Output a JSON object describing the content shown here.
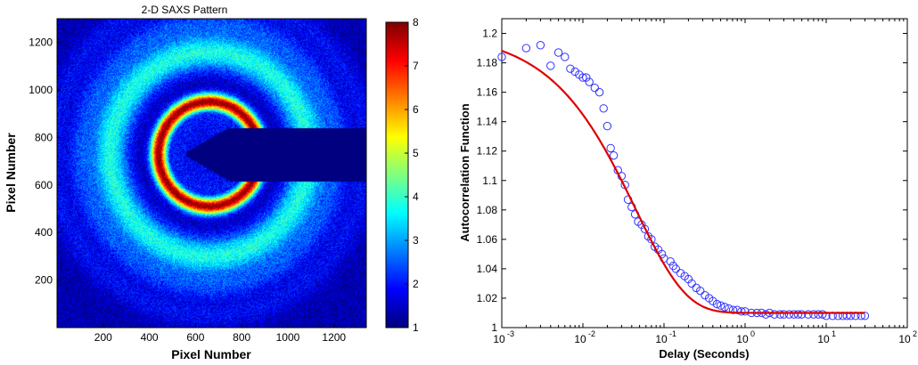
{
  "chart_data": [
    {
      "type": "heatmap",
      "title": "2-D SAXS Pattern",
      "xlabel": "Pixel Number",
      "ylabel": "Pixel Number",
      "xlim": [
        0,
        1340
      ],
      "ylim": [
        0,
        1300
      ],
      "x_ticks": [
        200,
        400,
        600,
        800,
        1000,
        1200
      ],
      "y_ticks": [
        200,
        400,
        600,
        800,
        1000,
        1200
      ],
      "colorbar": {
        "min": 1,
        "max": 8,
        "ticks": [
          1,
          2,
          3,
          4,
          5,
          6,
          7,
          8
        ],
        "colormap": "jet"
      },
      "pattern_center": [
        660,
        730
      ],
      "rings": [
        {
          "radius": 220,
          "value": 7.8
        },
        {
          "radius": 430,
          "value": 3.8
        },
        {
          "radius": 560,
          "value": 2.9
        },
        {
          "radius": 680,
          "value": 2.1
        }
      ],
      "background_value": 1.3,
      "beamstop": {
        "value": 1.0,
        "tip": [
          560,
          730
        ],
        "x_end": 1340,
        "y_range": [
          615,
          840
        ]
      },
      "grid": false
    },
    {
      "type": "scatter",
      "xlabel": "Delay (Seconds)",
      "ylabel": "Autocorrelation Function",
      "xscale": "log",
      "xlim": [
        0.001,
        100
      ],
      "ylim": [
        1.0,
        1.21
      ],
      "x_ticks": [
        0.001,
        0.01,
        0.1,
        1,
        10,
        100
      ],
      "x_tick_labels": [
        {
          "base": "10",
          "exp": "-3"
        },
        {
          "base": "10",
          "exp": "-2"
        },
        {
          "base": "10",
          "exp": "-1"
        },
        {
          "base": "10",
          "exp": "0"
        },
        {
          "base": "10",
          "exp": "1"
        },
        {
          "base": "10",
          "exp": "2"
        }
      ],
      "y_ticks": [
        "1",
        "1.02",
        "1.04",
        "1.06",
        "1.08",
        "1.1",
        "1.12",
        "1.14",
        "1.16",
        "1.18",
        "1.2"
      ],
      "grid": false,
      "series": [
        {
          "type": "scatter",
          "marker": "circle-open",
          "color": "#3333ff",
          "x": [
            0.001,
            0.002,
            0.003,
            0.004,
            0.005,
            0.006,
            0.007,
            0.008,
            0.009,
            0.01,
            0.011,
            0.012,
            0.014,
            0.016,
            0.018,
            0.02,
            0.022,
            0.024,
            0.027,
            0.03,
            0.033,
            0.036,
            0.04,
            0.044,
            0.048,
            0.053,
            0.058,
            0.064,
            0.07,
            0.077,
            0.085,
            0.094,
            0.1,
            0.12,
            0.13,
            0.14,
            0.16,
            0.18,
            0.2,
            0.22,
            0.25,
            0.28,
            0.32,
            0.36,
            0.4,
            0.45,
            0.5,
            0.56,
            0.63,
            0.71,
            0.8,
            0.9,
            1.0,
            1.2,
            1.4,
            1.6,
            1.8,
            2.0,
            2.3,
            2.7,
            3.0,
            3.5,
            4.0,
            4.5,
            5.0,
            6.0,
            7.0,
            8.0,
            9.0,
            10,
            12,
            14,
            16,
            18,
            20,
            23,
            27,
            30
          ],
          "y": [
            1.184,
            1.19,
            1.192,
            1.178,
            1.187,
            1.184,
            1.176,
            1.174,
            1.172,
            1.17,
            1.17,
            1.167,
            1.163,
            1.16,
            1.149,
            1.137,
            1.122,
            1.117,
            1.107,
            1.103,
            1.097,
            1.087,
            1.082,
            1.077,
            1.072,
            1.07,
            1.067,
            1.062,
            1.06,
            1.055,
            1.053,
            1.05,
            1.047,
            1.045,
            1.042,
            1.04,
            1.037,
            1.035,
            1.033,
            1.03,
            1.027,
            1.025,
            1.022,
            1.02,
            1.018,
            1.016,
            1.015,
            1.014,
            1.013,
            1.012,
            1.012,
            1.011,
            1.011,
            1.01,
            1.01,
            1.01,
            1.009,
            1.01,
            1.009,
            1.009,
            1.009,
            1.009,
            1.009,
            1.009,
            1.009,
            1.009,
            1.009,
            1.009,
            1.009,
            1.008,
            1.008,
            1.008,
            1.008,
            1.008,
            1.008,
            1.008,
            1.008,
            1.008
          ]
        },
        {
          "type": "line",
          "color": "#dd0000",
          "model": {
            "baseline": 1.01,
            "amplitude": 0.191,
            "tau": 0.045,
            "beta": 0.7
          },
          "x_range": [
            0.001,
            30
          ]
        }
      ]
    }
  ]
}
